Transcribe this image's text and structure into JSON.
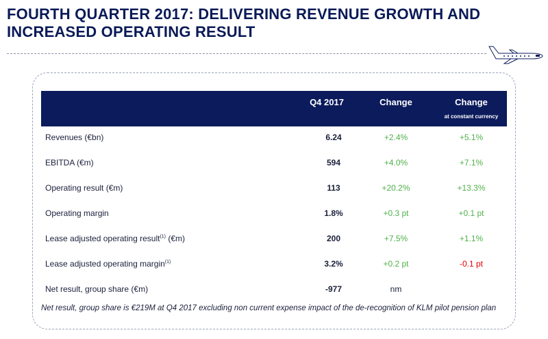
{
  "title": {
    "line1": "FOURTH QUARTER 2017: DELIVERING REVENUE GROWTH AND",
    "line2": "INCREASED OPERATING RESULT"
  },
  "table": {
    "headers": {
      "q4": "Q4 2017",
      "change": "Change",
      "change_cc": "Change",
      "change_cc_sub": "at constant currency"
    },
    "rows": [
      {
        "label": "Revenues (€bn)",
        "note": "",
        "label_suffix": "",
        "q4": "6.24",
        "change": "+2.4%",
        "change_cc": "+5.1%"
      },
      {
        "label": "EBITDA (€m)",
        "note": "",
        "label_suffix": "",
        "q4": "594",
        "change": "+4.0%",
        "change_cc": "+7.1%"
      },
      {
        "label": "Operating result (€m)",
        "note": "",
        "label_suffix": "",
        "q4": "113",
        "change": "+20.2%",
        "change_cc": "+13.3%"
      },
      {
        "label": "Operating margin",
        "note": "",
        "label_suffix": "",
        "q4": "1.8%",
        "change": "+0.3 pt",
        "change_cc": "+0.1 pt"
      },
      {
        "label": "Lease adjusted operating result",
        "note": "(1)",
        "label_suffix": " (€m)",
        "q4": "200",
        "change": "+7.5%",
        "change_cc": "+1.1%"
      },
      {
        "label": "Lease adjusted operating margin",
        "note": "(1)",
        "label_suffix": "",
        "q4": "3.2%",
        "change": "+0.2 pt",
        "change_cc": "-0.1 pt"
      },
      {
        "label": "Net result, group share (€m)",
        "note": "",
        "label_suffix": "",
        "q4": "-977",
        "change": "nm",
        "change_cc": ""
      }
    ]
  },
  "footnote": "Net result, group share is €219M at Q4 2017 excluding non current expense impact of the de-recognition of KLM pilot pension plan",
  "colors": {
    "header_bg": "#0b1b5c",
    "title": "#0a1a57",
    "positive": "#4fb04a",
    "negative": "#e00000"
  },
  "icons": {
    "plane": "airplane-icon"
  }
}
